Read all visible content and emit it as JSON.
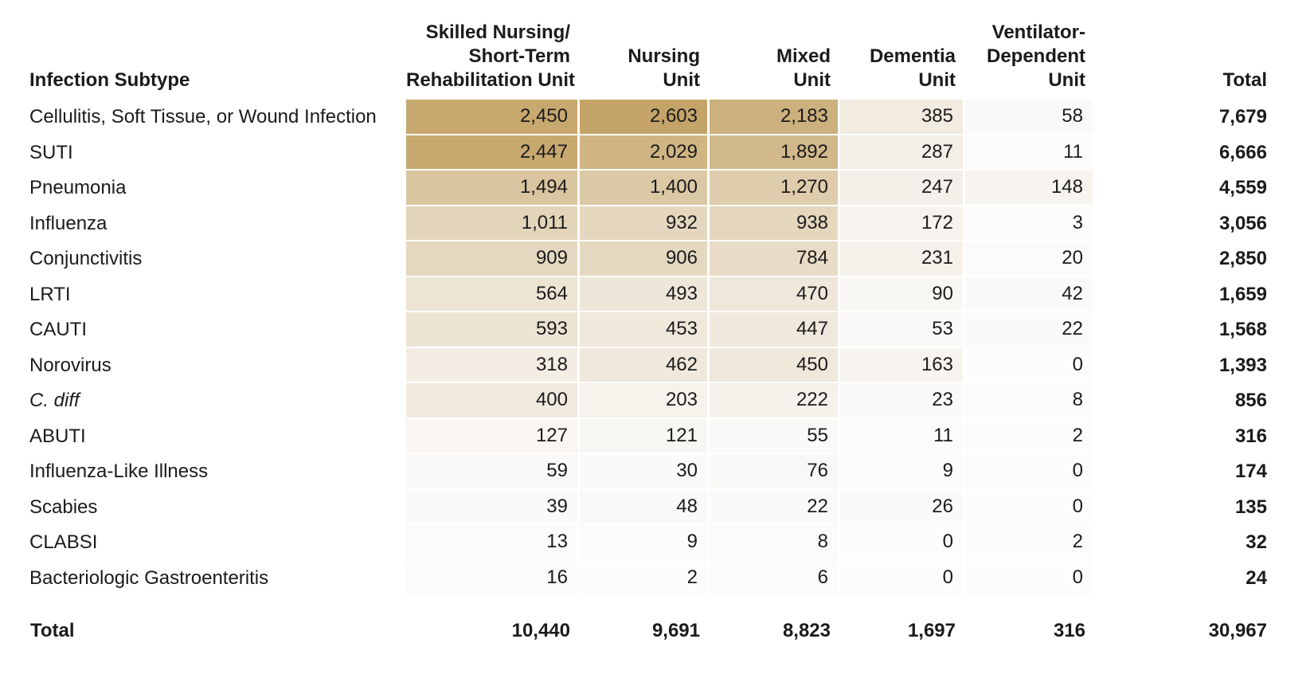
{
  "table": {
    "row_header": "Infection Subtype",
    "columns": [
      {
        "lines": [
          "Skilled Nursing/",
          "Short-Term",
          "Rehabilitation Unit"
        ]
      },
      {
        "lines": [
          "Nursing",
          "Unit"
        ]
      },
      {
        "lines": [
          "Mixed",
          "Unit"
        ]
      },
      {
        "lines": [
          "Dementia",
          "Unit"
        ]
      },
      {
        "lines": [
          "Ventilator-",
          "Dependent",
          "Unit"
        ]
      },
      {
        "lines": [
          "Total"
        ]
      }
    ],
    "rows": [
      {
        "label": "Cellulitis, Soft Tissue, or Wound Infection",
        "italic": false,
        "values": [
          2450,
          2603,
          2183,
          385,
          58
        ],
        "total": 7679
      },
      {
        "label": "SUTI",
        "italic": false,
        "values": [
          2447,
          2029,
          1892,
          287,
          11
        ],
        "total": 6666
      },
      {
        "label": "Pneumonia",
        "italic": false,
        "values": [
          1494,
          1400,
          1270,
          247,
          148
        ],
        "total": 4559
      },
      {
        "label": "Influenza",
        "italic": false,
        "values": [
          1011,
          932,
          938,
          172,
          3
        ],
        "total": 3056
      },
      {
        "label": "Conjunctivitis",
        "italic": false,
        "values": [
          909,
          906,
          784,
          231,
          20
        ],
        "total": 2850
      },
      {
        "label": "LRTI",
        "italic": false,
        "values": [
          564,
          493,
          470,
          90,
          42
        ],
        "total": 1659
      },
      {
        "label": "CAUTI",
        "italic": false,
        "values": [
          593,
          453,
          447,
          53,
          22
        ],
        "total": 1568
      },
      {
        "label": "Norovirus",
        "italic": false,
        "values": [
          318,
          462,
          450,
          163,
          0
        ],
        "total": 1393
      },
      {
        "label": "C. diff",
        "italic": true,
        "values": [
          400,
          203,
          222,
          23,
          8
        ],
        "total": 856
      },
      {
        "label": "ABUTI",
        "italic": false,
        "values": [
          127,
          121,
          55,
          11,
          2
        ],
        "total": 316
      },
      {
        "label": "Influenza-Like Illness",
        "italic": false,
        "values": [
          59,
          30,
          76,
          9,
          0
        ],
        "total": 174
      },
      {
        "label": "Scabies",
        "italic": false,
        "values": [
          39,
          48,
          22,
          26,
          0
        ],
        "total": 135
      },
      {
        "label": "CLABSI",
        "italic": false,
        "values": [
          13,
          9,
          8,
          0,
          2
        ],
        "total": 32
      },
      {
        "label": "Bacteriologic Gastroenteritis",
        "italic": false,
        "values": [
          16,
          2,
          6,
          0,
          0
        ],
        "total": 24
      }
    ],
    "total_row": {
      "label": "Total",
      "values": [
        10440,
        9691,
        8823,
        1697,
        316
      ],
      "total": 30967
    },
    "heat": {
      "min_color_rgb": [
        252,
        252,
        253
      ],
      "max_color_rgb": [
        196,
        164,
        104
      ],
      "min_color_hex": "#fcfcfd",
      "max_color_hex": "#c4a468",
      "max_value": 2603,
      "gamma": 0.85
    }
  },
  "chart_data": {
    "type": "heatmap",
    "title": "",
    "row_label_header": "Infection Subtype",
    "columns": [
      "Skilled Nursing/Short-Term Rehabilitation Unit",
      "Nursing Unit",
      "Mixed Unit",
      "Dementia Unit",
      "Ventilator-Dependent Unit",
      "Total"
    ],
    "rows": [
      "Cellulitis, Soft Tissue, or Wound Infection",
      "SUTI",
      "Pneumonia",
      "Influenza",
      "Conjunctivitis",
      "LRTI",
      "CAUTI",
      "Norovirus",
      "C. diff",
      "ABUTI",
      "Influenza-Like Illness",
      "Scabies",
      "CLABSI",
      "Bacteriologic Gastroenteritis"
    ],
    "matrix": [
      [
        2450,
        2603,
        2183,
        385,
        58
      ],
      [
        2447,
        2029,
        1892,
        287,
        11
      ],
      [
        1494,
        1400,
        1270,
        247,
        148
      ],
      [
        1011,
        932,
        938,
        172,
        3
      ],
      [
        909,
        906,
        784,
        231,
        20
      ],
      [
        564,
        493,
        470,
        90,
        42
      ],
      [
        593,
        453,
        447,
        53,
        22
      ],
      [
        318,
        462,
        450,
        163,
        0
      ],
      [
        400,
        203,
        222,
        23,
        8
      ],
      [
        127,
        121,
        55,
        11,
        2
      ],
      [
        59,
        30,
        76,
        9,
        0
      ],
      [
        39,
        48,
        22,
        26,
        0
      ],
      [
        13,
        9,
        8,
        0,
        2
      ],
      [
        16,
        2,
        6,
        0,
        0
      ]
    ],
    "row_totals": [
      7679,
      6666,
      4559,
      3056,
      2850,
      1659,
      1568,
      1393,
      856,
      316,
      174,
      135,
      32,
      24
    ],
    "column_totals": [
      10440,
      9691,
      8823,
      1697,
      316
    ],
    "grand_total": 30967,
    "value_range": [
      0,
      2603
    ],
    "color_scale": [
      "#fcfcfd",
      "#c4a468"
    ],
    "legend": "none",
    "grid": "white cell separators"
  }
}
